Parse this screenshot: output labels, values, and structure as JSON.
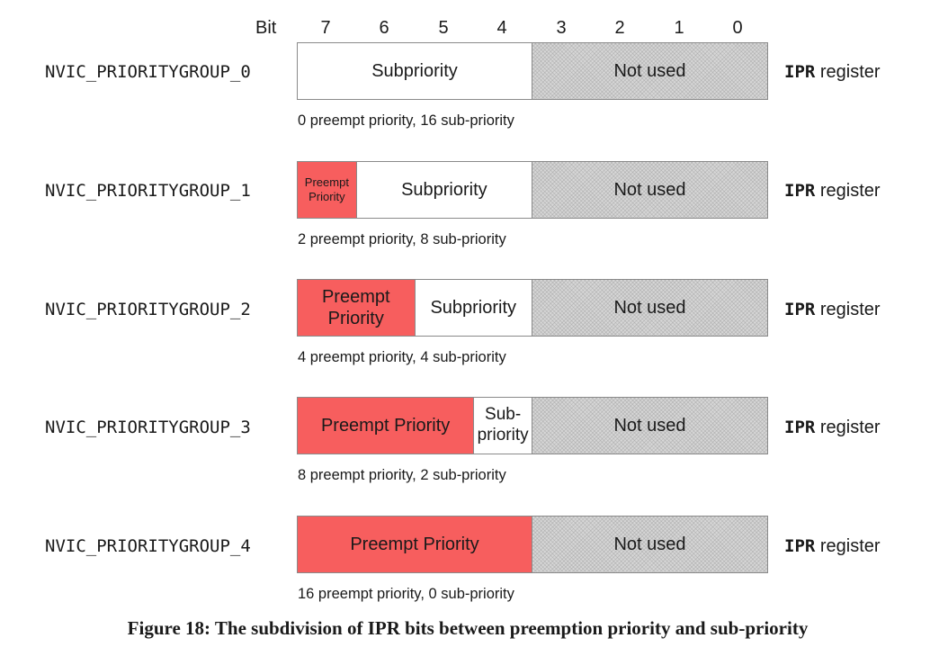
{
  "bit_header": {
    "label": "Bit",
    "bits": [
      "7",
      "6",
      "5",
      "4",
      "3",
      "2",
      "1",
      "0"
    ]
  },
  "groups": [
    {
      "name": "NVIC_PRIORITYGROUP_0",
      "preempt_bits": 0,
      "sub_bits": 4,
      "unused_bits": 4,
      "preempt_label": "",
      "sub_label": "Subpriority",
      "unused_label": "Not used",
      "caption": "0 preempt priority, 16 sub-priority"
    },
    {
      "name": "NVIC_PRIORITYGROUP_1",
      "preempt_bits": 1,
      "sub_bits": 3,
      "unused_bits": 4,
      "preempt_label": "Preempt\nPriority",
      "sub_label": "Subpriority",
      "unused_label": "Not used",
      "caption": "2 preempt priority, 8 sub-priority"
    },
    {
      "name": "NVIC_PRIORITYGROUP_2",
      "preempt_bits": 2,
      "sub_bits": 2,
      "unused_bits": 4,
      "preempt_label": "Preempt\nPriority",
      "sub_label": "Subpriority",
      "unused_label": "Not used",
      "caption": "4 preempt priority, 4 sub-priority"
    },
    {
      "name": "NVIC_PRIORITYGROUP_3",
      "preempt_bits": 3,
      "sub_bits": 1,
      "unused_bits": 4,
      "preempt_label": "Preempt Priority",
      "sub_label": "Sub-\npriority",
      "unused_label": "Not used",
      "caption": "8 preempt priority, 2 sub-priority"
    },
    {
      "name": "NVIC_PRIORITYGROUP_4",
      "preempt_bits": 4,
      "sub_bits": 0,
      "unused_bits": 4,
      "preempt_label": "Preempt Priority",
      "sub_label": "",
      "unused_label": "Not used",
      "caption": "16 preempt priority, 0 sub-priority"
    }
  ],
  "register_label": {
    "code": "IPR",
    "text": " register"
  },
  "figure_caption": "Figure 18: The subdivision of IPR bits between preemption priority and sub-priority",
  "colors": {
    "preempt": "#f75e5e",
    "subpriority": "#ffffff",
    "unused": "#d7d7d7"
  }
}
